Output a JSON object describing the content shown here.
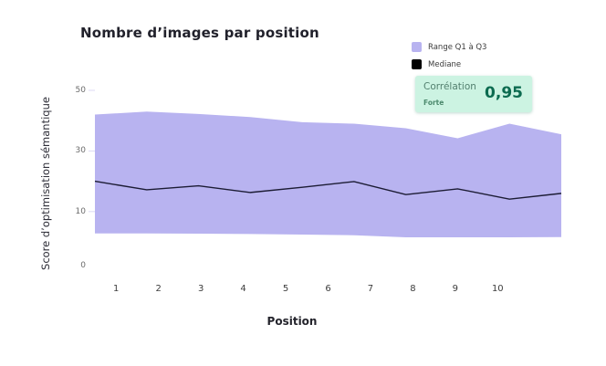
{
  "title": "Nombre d’images par position",
  "legend": [
    {
      "label": "Range Q1 à Q3",
      "color": "#b8b3f0"
    },
    {
      "label": "Mediane",
      "color": "#000000"
    }
  ],
  "correlation_card": {
    "label": "Corrélation",
    "strength": "Forte",
    "value": "0,95",
    "bg_color": "#ccf3e2",
    "value_color": "#0c6b50"
  },
  "chart_data": {
    "type": "area",
    "title": "Nombre d’images par position",
    "xlabel": "Position",
    "ylabel": "Score d’optimisation sémantique",
    "categories": [
      "1",
      "2",
      "3",
      "4",
      "5",
      "6",
      "7",
      "8",
      "9",
      "10"
    ],
    "yticks": [
      50,
      30,
      10,
      0
    ],
    "ylim": [
      0,
      50
    ],
    "grid": false,
    "legend_position": "top-right",
    "series": [
      {
        "name": "Range Q1 à Q3",
        "type": "band",
        "color": "#b8b3f0",
        "q3": [
          42,
          43,
          42.2,
          41.2,
          39.5,
          39,
          37.5,
          34.2,
          39,
          35.5
        ],
        "q1": [
          2.8,
          2.8,
          2.7,
          2.6,
          2.4,
          2.2,
          1.5,
          1.5,
          1.5,
          1.6
        ]
      },
      {
        "name": "Mediane",
        "type": "line",
        "color": "#1c1c34",
        "values": [
          20,
          17.2,
          18.5,
          16.3,
          18,
          19.9,
          15.6,
          17.5,
          14.1,
          16
        ]
      }
    ]
  }
}
